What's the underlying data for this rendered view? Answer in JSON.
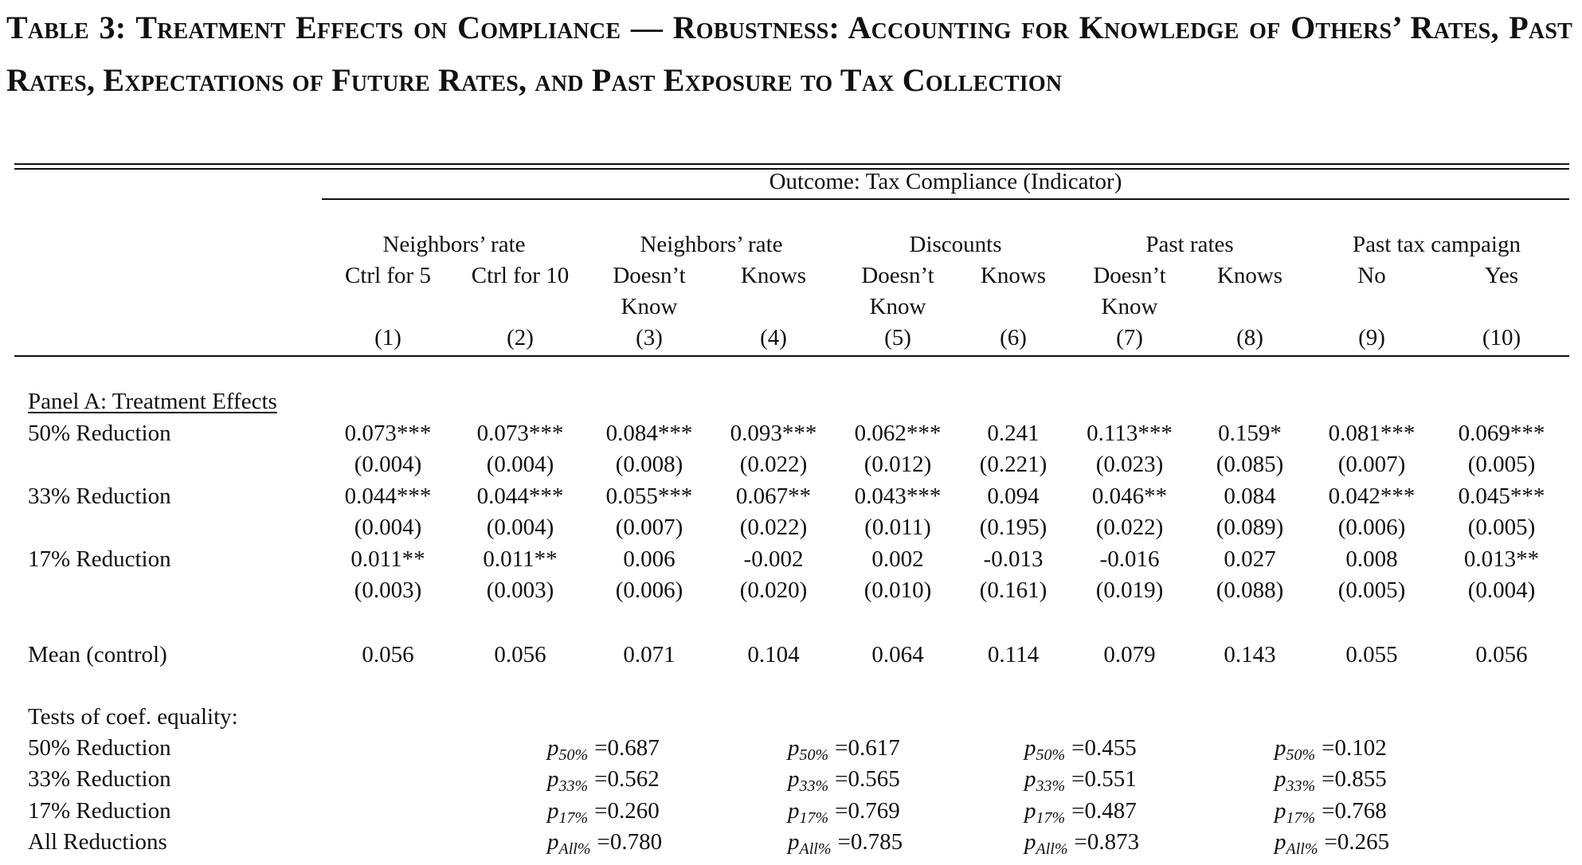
{
  "title": "Table 3: Treatment Effects on Compliance — Robustness: Accounting for Knowledge of Others’ Rates, Past Rates, Expectations of Future Rates, and Past Exposure to Tax Collection",
  "outcome_header": "Outcome: Tax Compliance (Indicator)",
  "group_headers": [
    "Neighbors’ rate",
    "Neighbors’ rate",
    "Discounts",
    "Past rates",
    "Past tax campaign"
  ],
  "columns": [
    {
      "line1": "Ctrl for 5",
      "line2": "",
      "num": "(1)"
    },
    {
      "line1": "Ctrl for 10",
      "line2": "",
      "num": "(2)"
    },
    {
      "line1": "Doesn’t",
      "line2": "Know",
      "num": "(3)"
    },
    {
      "line1": "Knows",
      "line2": "",
      "num": "(4)"
    },
    {
      "line1": "Doesn’t",
      "line2": "Know",
      "num": "(5)"
    },
    {
      "line1": "Knows",
      "line2": "",
      "num": "(6)"
    },
    {
      "line1": "Doesn’t",
      "line2": "Know",
      "num": "(7)"
    },
    {
      "line1": "Knows",
      "line2": "",
      "num": "(8)"
    },
    {
      "line1": "No",
      "line2": "",
      "num": "(9)"
    },
    {
      "line1": "Yes",
      "line2": "",
      "num": "(10)"
    }
  ],
  "panel_a_label": "Panel A: Treatment Effects",
  "rows": [
    {
      "label": "50% Reduction",
      "coef": [
        "0.073***",
        "0.073***",
        "0.084***",
        "0.093***",
        "0.062***",
        "0.241",
        "0.113***",
        "0.159*",
        "0.081***",
        "0.069***"
      ],
      "se": [
        "(0.004)",
        "(0.004)",
        "(0.008)",
        "(0.022)",
        "(0.012)",
        "(0.221)",
        "(0.023)",
        "(0.085)",
        "(0.007)",
        "(0.005)"
      ]
    },
    {
      "label": "33% Reduction",
      "coef": [
        "0.044***",
        "0.044***",
        "0.055***",
        "0.067**",
        "0.043***",
        "0.094",
        "0.046**",
        "0.084",
        "0.042***",
        "0.045***"
      ],
      "se": [
        "(0.004)",
        "(0.004)",
        "(0.007)",
        "(0.022)",
        "(0.011)",
        "(0.195)",
        "(0.022)",
        "(0.089)",
        "(0.006)",
        "(0.005)"
      ]
    },
    {
      "label": "17% Reduction",
      "coef": [
        "0.011**",
        "0.011**",
        "0.006",
        "-0.002",
        "0.002",
        "-0.013",
        "-0.016",
        "0.027",
        "0.008",
        "0.013**"
      ],
      "se": [
        "(0.003)",
        "(0.003)",
        "(0.006)",
        "(0.020)",
        "(0.010)",
        "(0.161)",
        "(0.019)",
        "(0.088)",
        "(0.005)",
        "(0.004)"
      ]
    }
  ],
  "mean_control": {
    "label": "Mean (control)",
    "values": [
      "0.056",
      "0.056",
      "0.071",
      "0.104",
      "0.064",
      "0.114",
      "0.079",
      "0.143",
      "0.055",
      "0.056"
    ]
  },
  "tests": {
    "label": "Tests of coef. equality:",
    "row_labels": [
      "50% Reduction",
      "33% Reduction",
      "17% Reduction",
      "All Reductions"
    ],
    "symbol": "p",
    "subscripts": [
      "50%",
      "33%",
      "17%",
      "All%"
    ],
    "groups": [
      [
        "0.687",
        "0.562",
        "0.260",
        "0.780"
      ],
      [
        "0.617",
        "0.565",
        "0.769",
        "0.785"
      ],
      [
        "0.455",
        "0.551",
        "0.487",
        "0.873"
      ],
      [
        "0.102",
        "0.855",
        "0.768",
        "0.265"
      ]
    ]
  }
}
